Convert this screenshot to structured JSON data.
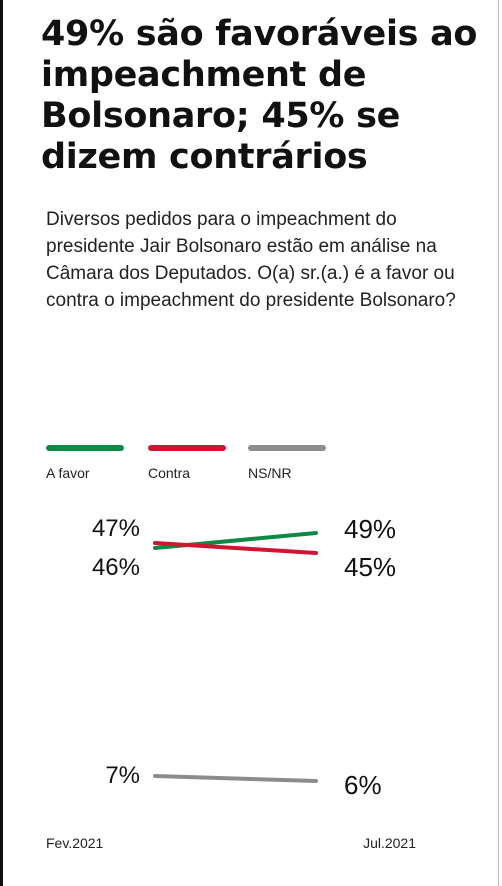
{
  "header": {
    "title": "49% são favoráveis ao impeachment de Bolsonaro; 45% se dizem contrários",
    "question": "Diversos pedidos para o impeachment do presidente Jair Bolsonaro estão em análise na Câmara dos Deputados. O(a) sr.(a.) é a favor ou contra o impeachment do presidente Bolsonaro?"
  },
  "legend": {
    "items": [
      {
        "label": "A favor",
        "color": "#0f8a45"
      },
      {
        "label": "Contra",
        "color": "#d21433"
      },
      {
        "label": "NS/NR",
        "color": "#8c8c8c"
      }
    ]
  },
  "chart_data": {
    "type": "line",
    "x": [
      "Fev.2021",
      "Jul.2021"
    ],
    "series": [
      {
        "name": "A favor",
        "values": [
          46,
          49
        ],
        "labels": [
          "46%",
          "49%"
        ],
        "color": "#0f8a45"
      },
      {
        "name": "Contra",
        "values": [
          47,
          45
        ],
        "labels": [
          "47%",
          "45%"
        ],
        "color": "#d21433"
      },
      {
        "name": "NS/NR",
        "values": [
          7,
          6
        ],
        "labels": [
          "7%",
          "6%"
        ],
        "color": "#8c8c8c"
      }
    ],
    "legend_position": "top-left",
    "grid": false
  }
}
